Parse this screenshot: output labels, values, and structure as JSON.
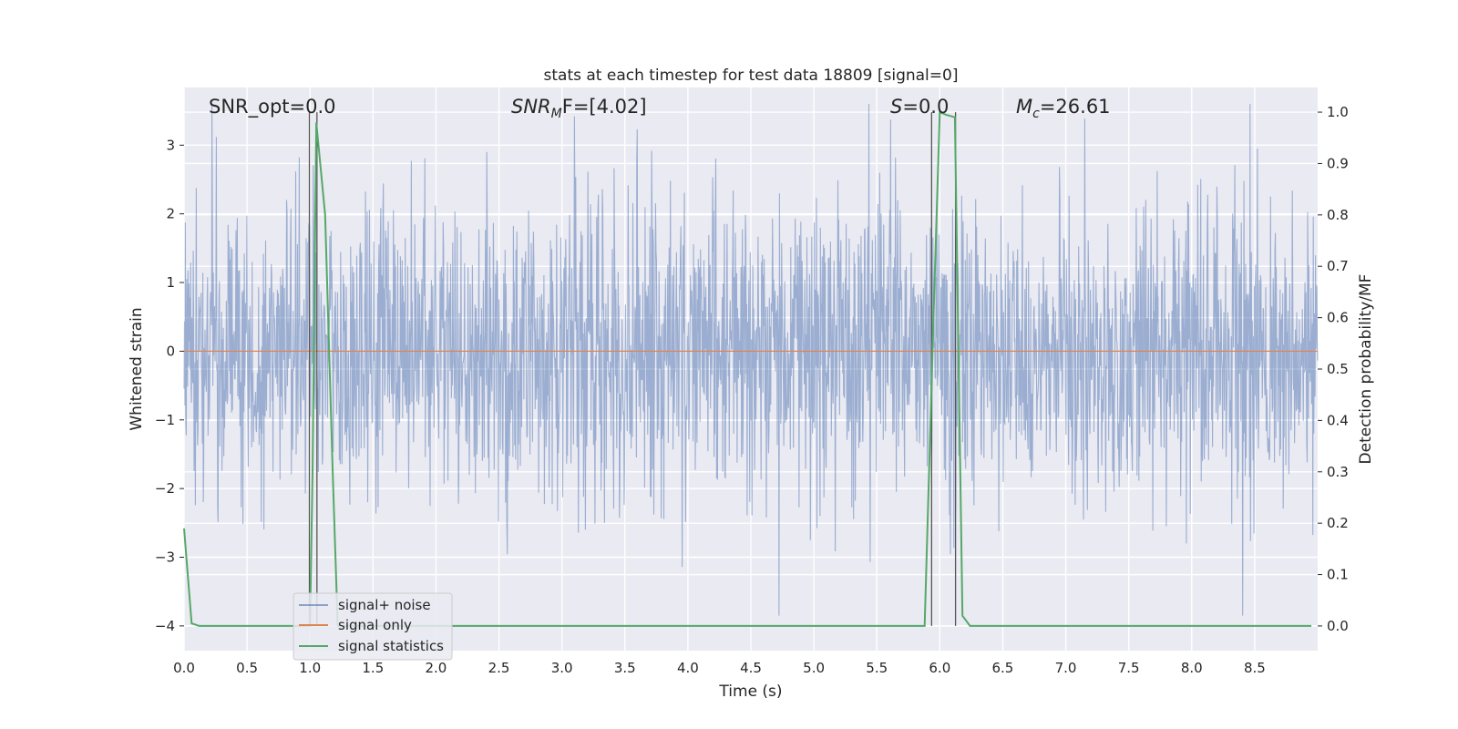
{
  "chart_data": {
    "type": "line",
    "title": "stats at each timestep for test data 18809 [signal=0]",
    "xlabel": "Time (s)",
    "ylabel_left": "Whitened strain",
    "ylabel_right": "Detection probability/MF",
    "xlim": [
      0.0,
      9.0
    ],
    "ylim_left": [
      -4.36,
      3.84
    ],
    "ylim_right": [
      -0.048,
      1.048
    ],
    "grid": true,
    "legend_position": "lower-left",
    "x_ticks": [
      "0.0",
      "0.5",
      "1.0",
      "1.5",
      "2.0",
      "2.5",
      "3.0",
      "3.5",
      "4.0",
      "4.5",
      "5.0",
      "5.5",
      "6.0",
      "6.5",
      "7.0",
      "7.5",
      "8.0",
      "8.5"
    ],
    "y_left_ticks": [
      "−4",
      "−3",
      "−2",
      "−1",
      "0",
      "1",
      "2",
      "3"
    ],
    "y_right_ticks": [
      "0.0",
      "0.1",
      "0.2",
      "0.3",
      "0.4",
      "0.5",
      "0.6",
      "0.7",
      "0.8",
      "0.9",
      "1.0"
    ],
    "annotations": {
      "snr_opt": "SNR_opt=0.0",
      "snr_mf_main": "SNR",
      "snr_mf_sub": "M",
      "snr_mf_rest": "F=[4.02]",
      "s_main": "S",
      "s_rest": "=0.0",
      "mc_main": "M",
      "mc_sub": "c",
      "mc_rest": "=26.61"
    },
    "series": [
      {
        "name": "signal+ noise",
        "color": "#4c72b0",
        "kind": "noise",
        "seed": 18809,
        "sigma": 1.0
      },
      {
        "name": "signal only",
        "color": "#dd8452",
        "kind": "constant",
        "y": 0.0
      },
      {
        "name": "signal statistics",
        "color": "#55a868",
        "axis": "right",
        "x": [
          0.0,
          0.06,
          0.12,
          0.5,
          0.99,
          1.0,
          1.02,
          1.05,
          1.12,
          1.18,
          1.22,
          2.0,
          4.0,
          5.88,
          5.95,
          6.0,
          6.05,
          6.12,
          6.18,
          6.24,
          7.0,
          8.0,
          8.95
        ],
        "y": [
          0.19,
          0.005,
          0.0,
          0.0,
          0.0,
          0.0,
          0.3,
          0.98,
          0.8,
          0.3,
          0.0,
          0.0,
          0.0,
          0.0,
          0.6,
          1.0,
          0.995,
          0.99,
          0.02,
          0.0,
          0.0,
          0.0,
          0.0
        ]
      }
    ],
    "vlines_x": [
      0.995,
      1.055,
      5.935,
      6.125
    ],
    "legend": [
      "signal+ noise",
      "signal only",
      "signal statistics"
    ]
  }
}
